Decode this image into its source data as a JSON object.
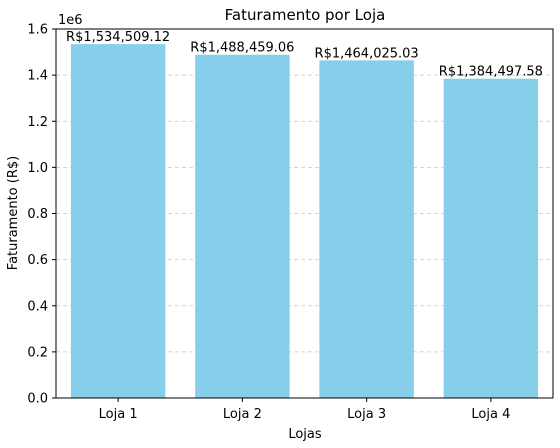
{
  "chart_data": {
    "type": "bar",
    "title": "Faturamento por Loja",
    "xlabel": "Lojas",
    "ylabel": "Faturamento (R$)",
    "y_scale_label": "1e6",
    "categories": [
      "Loja 1",
      "Loja 2",
      "Loja 3",
      "Loja 4"
    ],
    "values": [
      1534509.12,
      1488459.06,
      1464025.03,
      1384497.58
    ],
    "data_labels": [
      "R$1,534,509.12",
      "R$1,488,459.06",
      "R$1,464,025.03",
      "R$1,384,497.58"
    ],
    "ylim": [
      0,
      1600000
    ],
    "y_ticks": [
      0,
      200000,
      400000,
      600000,
      800000,
      1000000,
      1200000,
      1400000,
      1600000
    ],
    "y_tick_labels": [
      "0.0",
      "0.2",
      "0.4",
      "0.6",
      "0.8",
      "1.0",
      "1.2",
      "1.4",
      "1.6"
    ],
    "grid": "y-dashed",
    "bar_color": "#87ceeb"
  }
}
